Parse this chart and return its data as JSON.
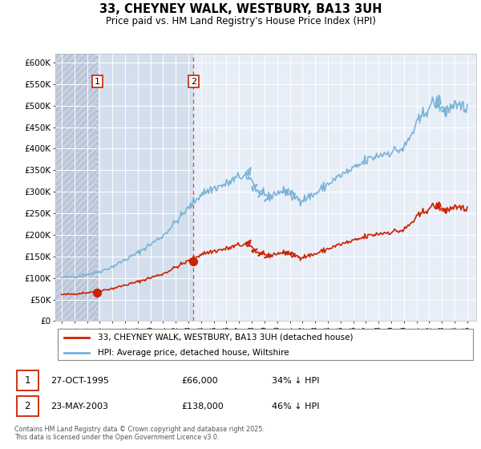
{
  "title": "33, CHEYNEY WALK, WESTBURY, BA13 3UH",
  "subtitle": "Price paid vs. HM Land Registry's House Price Index (HPI)",
  "ylim": [
    0,
    620000
  ],
  "yticks": [
    0,
    50000,
    100000,
    150000,
    200000,
    250000,
    300000,
    350000,
    400000,
    450000,
    500000,
    550000,
    600000
  ],
  "ytick_labels": [
    "£0",
    "£50K",
    "£100K",
    "£150K",
    "£200K",
    "£250K",
    "£300K",
    "£350K",
    "£400K",
    "£450K",
    "£500K",
    "£550K",
    "£600K"
  ],
  "hpi_color": "#7ab4d8",
  "sold_color": "#cc2200",
  "marker_color": "#cc2200",
  "sale1_x": 1995.82,
  "sale1_y": 66000,
  "sale1_label": "1",
  "sale1_date": "27-OCT-1995",
  "sale1_price": "£66,000",
  "sale1_note": "34% ↓ HPI",
  "sale2_x": 2003.39,
  "sale2_y": 138000,
  "sale2_label": "2",
  "sale2_date": "23-MAY-2003",
  "sale2_price": "£138,000",
  "sale2_note": "46% ↓ HPI",
  "legend_line1": "33, CHEYNEY WALK, WESTBURY, BA13 3UH (detached house)",
  "legend_line2": "HPI: Average price, detached house, Wiltshire",
  "footer": "Contains HM Land Registry data © Crown copyright and database right 2025.\nThis data is licensed under the Open Government Licence v3.0.",
  "xlim": [
    1992.5,
    2025.7
  ],
  "xtick_years": [
    1993,
    1994,
    1995,
    1996,
    1997,
    1998,
    1999,
    2000,
    2001,
    2002,
    2003,
    2004,
    2005,
    2006,
    2007,
    2008,
    2009,
    2010,
    2011,
    2012,
    2013,
    2014,
    2015,
    2016,
    2017,
    2018,
    2019,
    2020,
    2021,
    2022,
    2023,
    2024,
    2025
  ]
}
